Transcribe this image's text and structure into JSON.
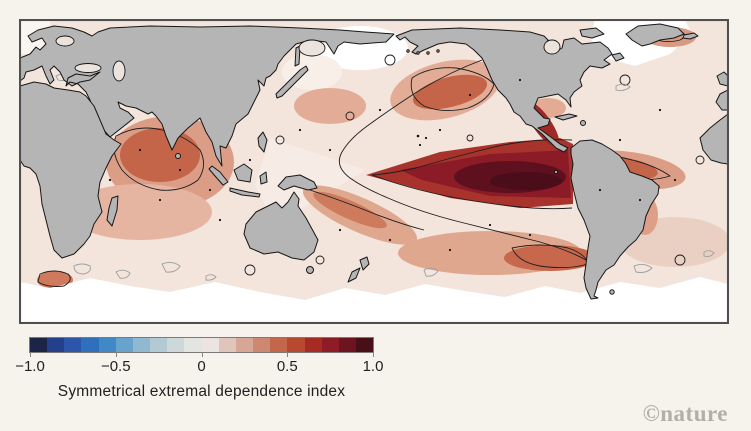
{
  "figure": {
    "background_color": "#f5f3ec",
    "watermark": "©nature"
  },
  "colorbar": {
    "label": "Symmetrical extremal dependence index",
    "min": -1.0,
    "max": 1.0,
    "tick_values": [
      -1.0,
      -0.5,
      0,
      0.5,
      1.0
    ],
    "tick_labels": [
      "−1.0",
      "−0.5",
      "0",
      "0.5",
      "1.0"
    ],
    "segments": [
      "#1c2447",
      "#24408c",
      "#2c55ab",
      "#2f70bd",
      "#4189c6",
      "#68a3cb",
      "#8fb9d0",
      "#b1cad4",
      "#ccd8d9",
      "#e3e5e3",
      "#ece4e0",
      "#e0c5ba",
      "#d6a795",
      "#cd8872",
      "#c3664b",
      "#b94830",
      "#a62b23",
      "#8e1c26",
      "#6e1421",
      "#471019"
    ]
  },
  "colors": {
    "land": "#b5b5b5",
    "coastline": "#161616",
    "ocean_base": "#f3e4dc",
    "contour_positive": "#1d1d1d",
    "contour_negative": "#9aa0a0",
    "el_nino_core": "#4a0d19",
    "frame": "#4f4f4f",
    "watermark": "#b2afa8"
  },
  "chart_data": {
    "type": "heatmap",
    "title": "",
    "variable": "Symmetrical extremal dependence index",
    "colorbar": {
      "range": [
        -1.0,
        1.0
      ],
      "ticks": [
        -1.0,
        -0.5,
        0,
        0.5,
        1.0
      ],
      "n_segments": 20,
      "palette": [
        "#1c2447",
        "#24408c",
        "#2c55ab",
        "#2f70bd",
        "#4189c6",
        "#68a3cb",
        "#8fb9d0",
        "#b1cad4",
        "#ccd8d9",
        "#e3e5e3",
        "#ece4e0",
        "#e0c5ba",
        "#d6a795",
        "#cd8872",
        "#c3664b",
        "#b94830",
        "#a62b23",
        "#8e1c26",
        "#6e1421",
        "#471019"
      ]
    },
    "map": {
      "projection": "cylindrical equal-area, Pacific-centered",
      "lon_extent": [
        0,
        360
      ],
      "lat_extent": [
        -90,
        90
      ],
      "land_masked_gray": true,
      "contours": {
        "black_lines": "enclose regions of high positive index (~>0.25/0.5)",
        "gray_lines": "enclose near-zero/negative patches, mainly Southern Ocean"
      }
    },
    "regions_estimated_values": [
      {
        "region": "Eastern equatorial Pacific (El Niño tongue core)",
        "sedi": 0.95
      },
      {
        "region": "Eastern equatorial Pacific (tongue envelope)",
        "sedi": 0.75
      },
      {
        "region": "Coastal Central America / Mexico band",
        "sedi": 0.7
      },
      {
        "region": "Northeast Pacific",
        "sedi": 0.45
      },
      {
        "region": "Tropical Indian Ocean",
        "sedi": 0.5
      },
      {
        "region": "Tropical Atlantic",
        "sedi": 0.45
      },
      {
        "region": "South Pacific convergence zone",
        "sedi": 0.4
      },
      {
        "region": "Southern mid-latitude Pacific band",
        "sedi": 0.35
      },
      {
        "region": "Nordic Seas blob",
        "sedi": 0.4
      },
      {
        "region": "Agulhas region south of Africa",
        "sedi": 0.45
      },
      {
        "region": "Western equatorial Pacific",
        "sedi": 0.15
      },
      {
        "region": "North Atlantic subpolar / around Greenland",
        "sedi": 0.0
      },
      {
        "region": "Bering Sea and Sea of Okhotsk",
        "sedi": 0.05
      },
      {
        "region": "Southern Ocean south of ~50°S",
        "sedi": 0.0
      },
      {
        "region": "South Atlantic subtropics",
        "sedi": 0.2
      },
      {
        "region": "Mediterranean Sea",
        "sedi": 0.15
      }
    ]
  }
}
